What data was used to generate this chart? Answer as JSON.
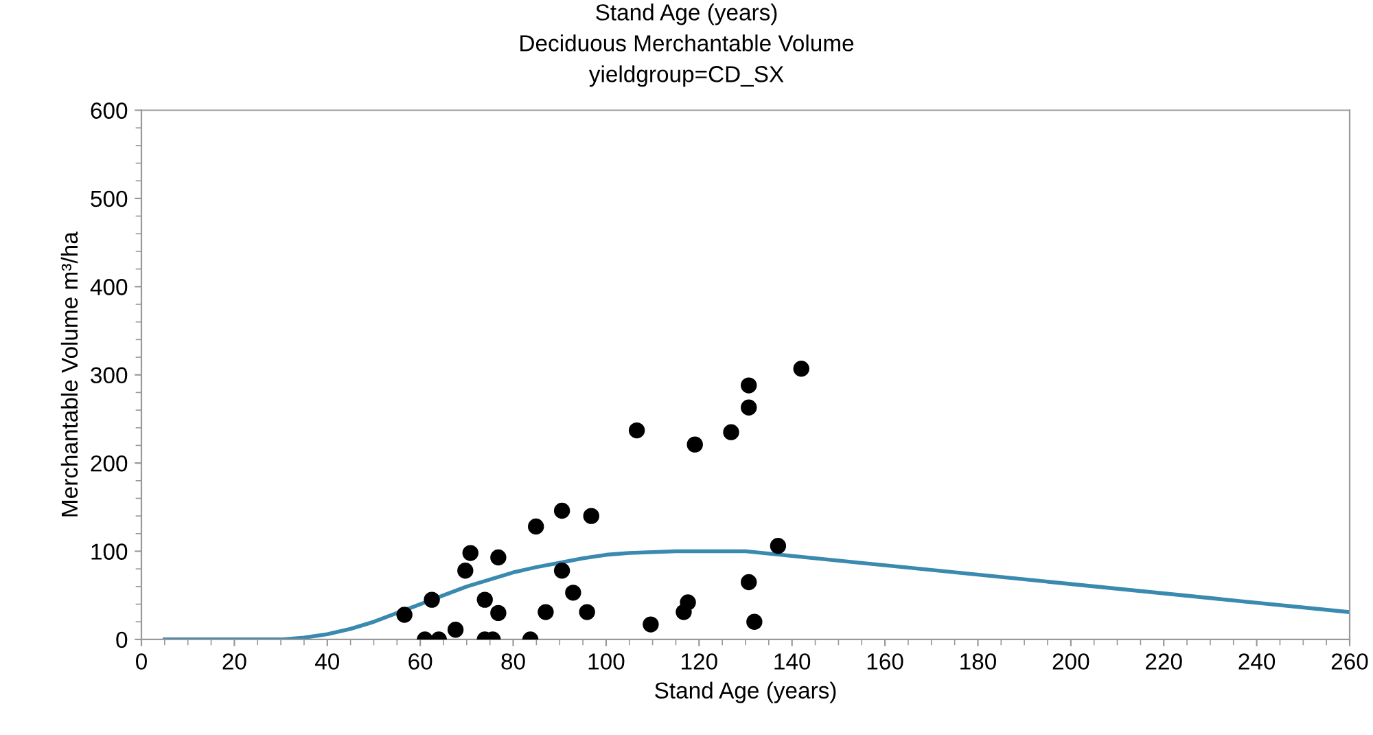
{
  "chart_data": {
    "type": "scatter",
    "title": "Deciduous Merchantable Volume",
    "subtitle": "yieldgroup=CD_SX",
    "annotations": [
      "Stand Age (years)"
    ],
    "xlabel": "Stand Age (years)",
    "ylabel": "Merchantable Volume m³/ha",
    "xlim": [
      0,
      260
    ],
    "xticks": [
      0,
      20,
      40,
      60,
      80,
      100,
      120,
      140,
      160,
      180,
      200,
      220,
      240,
      260
    ],
    "ylim": [
      0,
      600
    ],
    "yticks": [
      0,
      100,
      200,
      300,
      400,
      500,
      600
    ],
    "grid": false,
    "legend": false,
    "series": [
      {
        "marker": "circle",
        "color": "#000000",
        "x": [
          56.6,
          61,
          62.5,
          64,
          67.6,
          69.7,
          70.8,
          73.9,
          73.9,
          75.6,
          76.8,
          76.8,
          83.7,
          84.9,
          87,
          90.5,
          90.5,
          92.9,
          95.9,
          96.8,
          106.6,
          109.6,
          116.7,
          117.6,
          119.1,
          126.9,
          130.7,
          130.7,
          130.7,
          131.9,
          137,
          142
        ],
        "values": [
          28,
          0,
          45,
          0,
          11,
          78,
          98,
          45,
          0,
          0,
          30,
          93,
          0,
          128,
          31,
          78,
          146,
          53,
          31,
          140,
          237,
          17,
          31,
          42,
          221,
          235,
          263,
          288,
          65,
          20,
          106,
          307
        ]
      },
      {
        "type": "line",
        "marker": "none",
        "color": "#3a8ab0",
        "line_style": "solid",
        "x": [
          5,
          20,
          30,
          35,
          40,
          45,
          50,
          55,
          60,
          65,
          70,
          75,
          80,
          85,
          90,
          95,
          100,
          105,
          110,
          115,
          130,
          260
        ],
        "values": [
          0,
          0,
          0,
          2,
          6,
          12,
          20,
          30,
          40,
          50,
          60,
          68,
          76,
          82,
          87,
          92,
          96,
          98,
          99,
          100,
          100,
          31
        ]
      }
    ]
  }
}
